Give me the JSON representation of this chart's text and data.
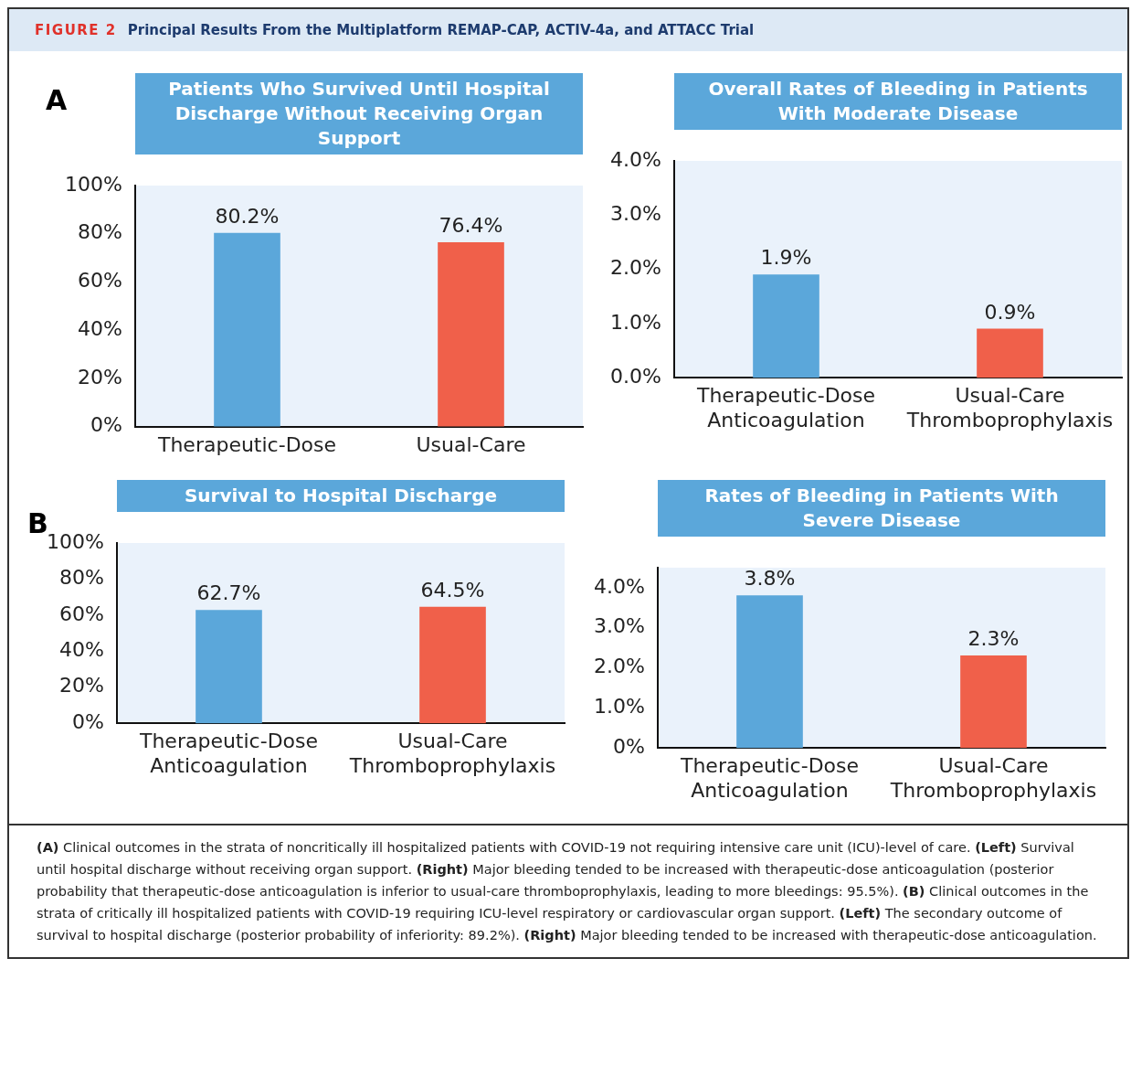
{
  "chart_data": [
    {
      "type": "bar",
      "title": "Patients Who Survived Until Hospital Discharge Without Receiving Organ Support",
      "annotations": [
        "FIGURE 2",
        "Principal Results From the Multiplatform REMAP-CAP, ACTIV-4a, and ATTACC Trial",
        "A"
      ],
      "categories": [
        "Therapeutic-Dose",
        "Usual-Care"
      ],
      "values": [
        80.2,
        76.4
      ],
      "colors": [
        "#5ba7da",
        "#f0604a"
      ],
      "value_labels": [
        "80.2%",
        "76.4%"
      ],
      "ylim": [
        0,
        100
      ],
      "yticks": [
        {
          "value": 0,
          "label": "0%"
        },
        {
          "value": 20,
          "label": "20%"
        },
        {
          "value": 40,
          "label": "40%"
        },
        {
          "value": 60,
          "label": "60%"
        },
        {
          "value": 80,
          "label": "80%"
        },
        {
          "value": 100,
          "label": "100%"
        }
      ],
      "grid": false,
      "legend": false
    },
    {
      "type": "bar",
      "title": "Overall Rates of Bleeding in Patients With Moderate Disease",
      "categories": [
        "Therapeutic-Dose Anticoagulation",
        "Usual-Care Thromboprophylaxis"
      ],
      "values": [
        1.9,
        0.9
      ],
      "colors": [
        "#5ba7da",
        "#f0604a"
      ],
      "value_labels": [
        "1.9%",
        "0.9%"
      ],
      "ylim": [
        0,
        4
      ],
      "yticks": [
        {
          "value": 0,
          "label": "0.0%"
        },
        {
          "value": 1,
          "label": "1.0%"
        },
        {
          "value": 2,
          "label": "2.0%"
        },
        {
          "value": 3,
          "label": "3.0%"
        },
        {
          "value": 4,
          "label": "4.0%"
        }
      ],
      "grid": false,
      "legend": false
    },
    {
      "type": "bar",
      "title": "Survival to Hospital Discharge",
      "annotations": [
        "B"
      ],
      "categories": [
        "Therapeutic-Dose Anticoagulation",
        "Usual-Care Thromboprophylaxis"
      ],
      "values": [
        62.7,
        64.5
      ],
      "colors": [
        "#5ba7da",
        "#f0604a"
      ],
      "value_labels": [
        "62.7%",
        "64.5%"
      ],
      "ylim": [
        0,
        100
      ],
      "yticks": [
        {
          "value": 0,
          "label": "0%"
        },
        {
          "value": 20,
          "label": "20%"
        },
        {
          "value": 40,
          "label": "40%"
        },
        {
          "value": 60,
          "label": "60%"
        },
        {
          "value": 80,
          "label": "80%"
        },
        {
          "value": 100,
          "label": "100%"
        }
      ],
      "grid": false,
      "legend": false
    },
    {
      "type": "bar",
      "title": "Rates of Bleeding in Patients With Severe Disease",
      "annotations": [
        "(A) Clinical outcomes in the strata of noncritically ill hospitalized patients with COVID-19 not requiring intensive care unit (ICU)-level of care. (Left) Survival until hospital discharge without receiving organ support. (Right) Major bleeding tended to be increased with therapeutic-dose anticoagulation (posterior probability that therapeutic-dose anticoagulation is inferior to usual-care thromboprophylaxis, leading to more bleedings: 95.5%). (B) Clinical outcomes in the strata of critically ill hospitalized patients with COVID-19 requiring ICU-level respiratory or cardiovascular organ support. (Left) The secondary outcome of survival to hospital discharge (posterior probability of inferiority: 89.2%). (Right) Major bleeding tended to be increased with therapeutic-dose anticoagulation."
      ],
      "categories": [
        "Therapeutic-Dose Anticoagulation",
        "Usual-Care Thromboprophylaxis"
      ],
      "values": [
        3.8,
        2.3
      ],
      "colors": [
        "#5ba7da",
        "#f0604a"
      ],
      "value_labels": [
        "3.8%",
        "2.3%"
      ],
      "ylim": [
        0,
        4.5
      ],
      "yticks": [
        {
          "value": 0,
          "label": "0%"
        },
        {
          "value": 1,
          "label": "1.0%"
        },
        {
          "value": 2,
          "label": "2.0%"
        },
        {
          "value": 3,
          "label": "3.0%"
        },
        {
          "value": 4,
          "label": "4.0%"
        }
      ],
      "grid": false,
      "legend": false
    }
  ]
}
